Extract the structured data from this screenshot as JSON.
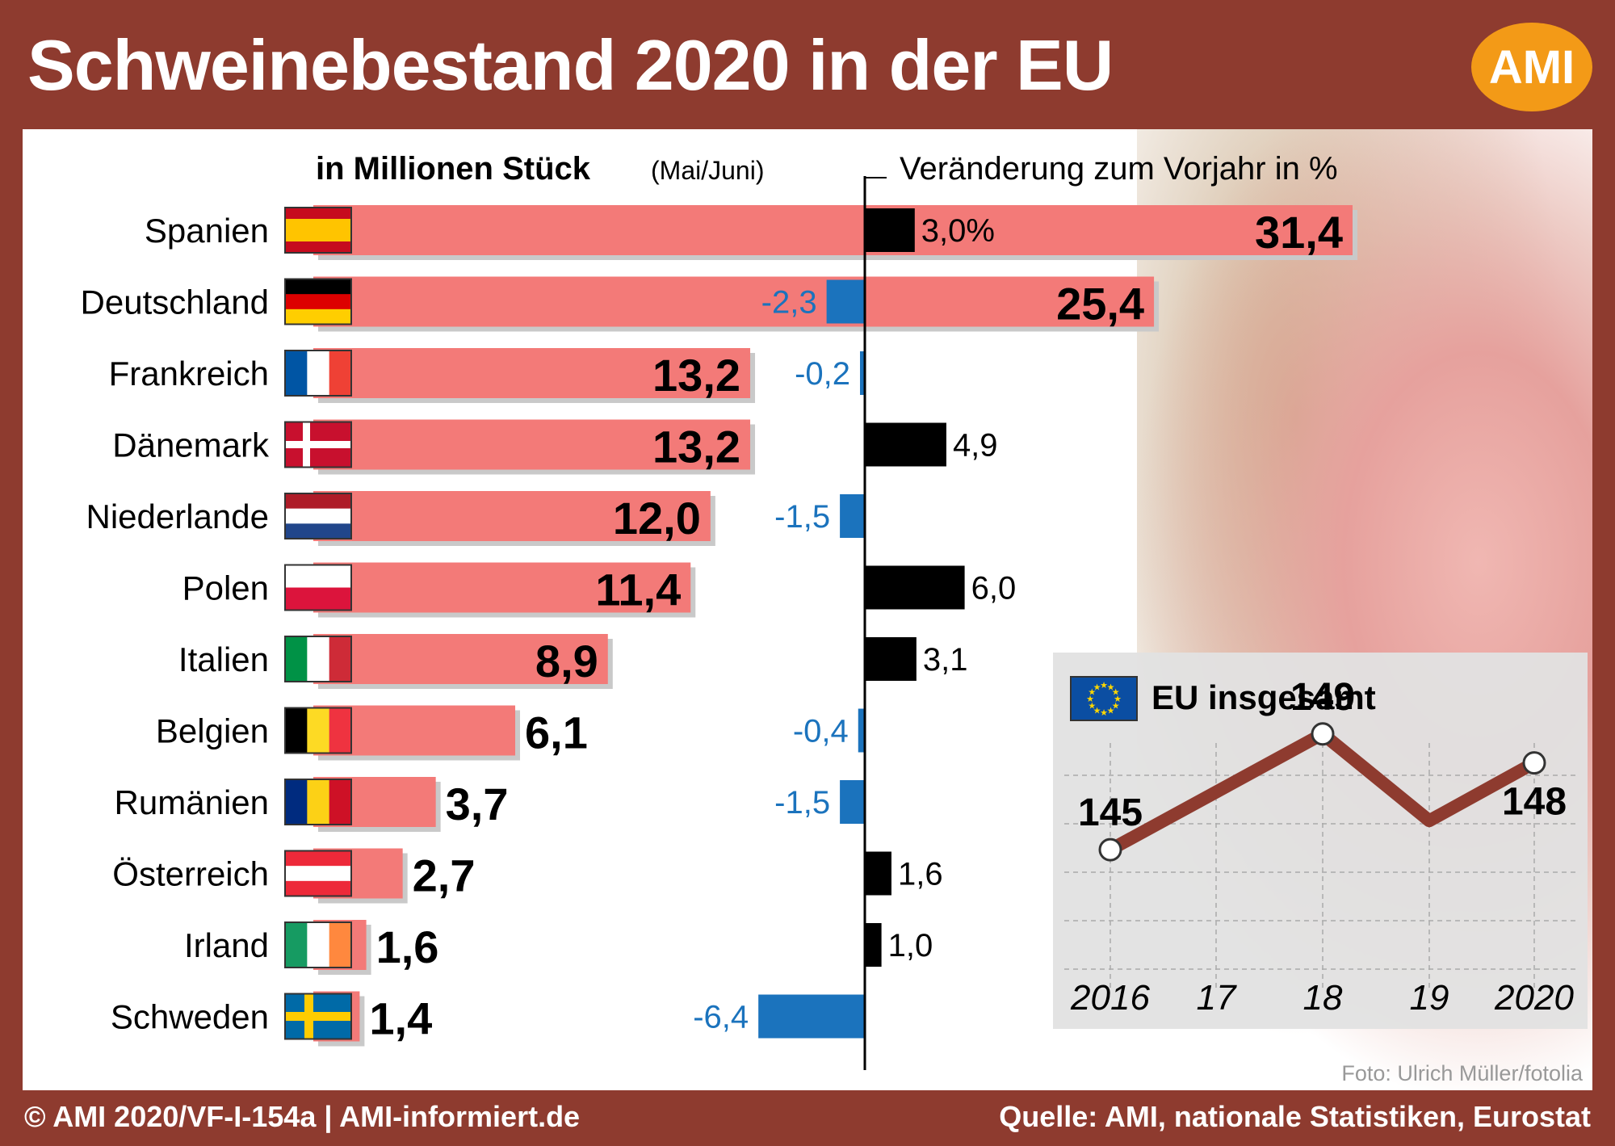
{
  "title": "Schweinebestand 2020 in der EU",
  "logo_text": "AMI",
  "footer_left": "© AMI 2020/VF-I-154a | AMI-informiert.de",
  "footer_right": "Quelle: AMI, nationale Statistiken, Eurostat",
  "photo_credit": "Foto: Ulrich Müller/fotolia",
  "colors": {
    "frame": "#8e3b2f",
    "herd_bar": "#f37a78",
    "change_positive": "#000000",
    "change_negative": "#1b73bd",
    "eu_line": "#8e3b2f"
  },
  "chart_data": [
    {
      "type": "bar",
      "orientation": "horizontal",
      "header": {
        "main": "in Millionen Stück",
        "sub": "(Mai/Juni)"
      },
      "unit": "Millionen Stück",
      "categories": [
        "Spanien",
        "Deutschland",
        "Frankreich",
        "Dänemark",
        "Niederlande",
        "Polen",
        "Italien",
        "Belgien",
        "Rumänien",
        "Österreich",
        "Irland",
        "Schweden"
      ],
      "values": [
        31.4,
        25.4,
        13.2,
        13.2,
        12.0,
        11.4,
        8.9,
        6.1,
        3.7,
        2.7,
        1.6,
        1.4
      ],
      "value_labels": [
        "31,4",
        "25,4",
        "13,2",
        "13,2",
        "12,0",
        "11,4",
        "8,9",
        "6,1",
        "3,7",
        "2,7",
        "1,6",
        "1,4"
      ],
      "flags": [
        "flag-spain",
        "flag-germany",
        "flag-france",
        "flag-denmark",
        "flag-netherlands",
        "flag-poland",
        "flag-italy",
        "flag-belgium",
        "flag-romania",
        "flag-austria",
        "flag-ireland",
        "flag-sweden"
      ]
    },
    {
      "type": "bar",
      "orientation": "horizontal-diverging",
      "header": "Veränderung zum Vorjahr in %",
      "unit": "%",
      "categories": [
        "Spanien",
        "Deutschland",
        "Frankreich",
        "Dänemark",
        "Niederlande",
        "Polen",
        "Italien",
        "Belgien",
        "Rumänien",
        "Österreich",
        "Irland",
        "Schweden"
      ],
      "values": [
        3.0,
        -2.3,
        -0.2,
        4.9,
        -1.5,
        6.0,
        3.1,
        -0.4,
        -1.5,
        1.6,
        1.0,
        -6.4
      ],
      "value_labels": [
        "3,0%",
        "-2,3",
        "-0,2",
        "4,9",
        "-1,5",
        "6,0",
        "3,1",
        "-0,4",
        "-1,5",
        "1,6",
        "1,0",
        "-6,4"
      ]
    },
    {
      "type": "line",
      "title": "EU insgesamt",
      "x_labels": [
        "2016",
        "17",
        "18",
        "19",
        "2020"
      ],
      "values": [
        145,
        null,
        149,
        146,
        148
      ],
      "point_labels": [
        "145",
        "",
        "149",
        "",
        "148"
      ],
      "marked_points": [
        0,
        2,
        4
      ],
      "grid": true
    }
  ]
}
